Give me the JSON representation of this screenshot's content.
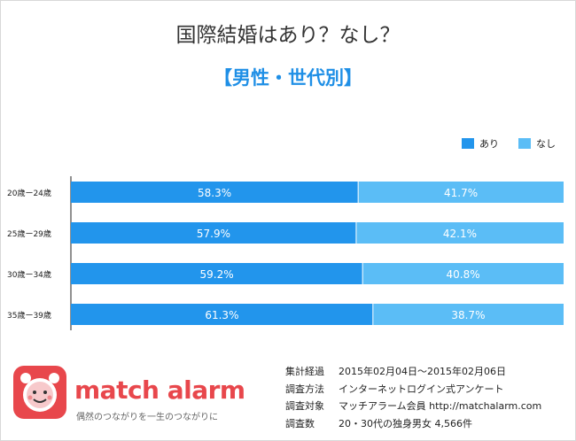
{
  "title": "国際結婚はあり？なし？",
  "subtitle": "【男性・世代別】",
  "legend": {
    "ari": "あり",
    "nashi": "なし"
  },
  "colors": {
    "ari": "#2295ec",
    "nashi": "#5bbdf6",
    "accent": "#1f8fe6",
    "brand": "#e8474c"
  },
  "chart_data": {
    "type": "bar",
    "orientation": "horizontal",
    "stacked": true,
    "categories": [
      "20歳ー24歳",
      "25歳ー29歳",
      "30歳ー34歳",
      "35歳ー39歳"
    ],
    "series": [
      {
        "name": "あり",
        "values": [
          58.3,
          57.9,
          59.2,
          61.3
        ],
        "labels": [
          "58.3%",
          "57.9%",
          "59.2%",
          "61.3%"
        ]
      },
      {
        "name": "なし",
        "values": [
          41.7,
          42.1,
          40.8,
          38.7
        ],
        "labels": [
          "41.7%",
          "42.1%",
          "40.8%",
          "38.7%"
        ]
      }
    ],
    "xlim": [
      0,
      100
    ],
    "legend_position": "top-right",
    "grid": false
  },
  "footer": {
    "brand": "match alarm",
    "tagline": "偶然のつながりを一生のつながりに",
    "logo_icon": "alarm-clock-face-icon",
    "info": [
      {
        "key": "集計経過",
        "value": "2015年02月04日〜2015年02月06日"
      },
      {
        "key": "調査方法",
        "value": "インターネットログイン式アンケート"
      },
      {
        "key": "調査対象",
        "value": "マッチアラーム会員 http://matchalarm.com"
      },
      {
        "key": "調査数",
        "value": "20・30代の独身男女 4,566件"
      }
    ]
  }
}
